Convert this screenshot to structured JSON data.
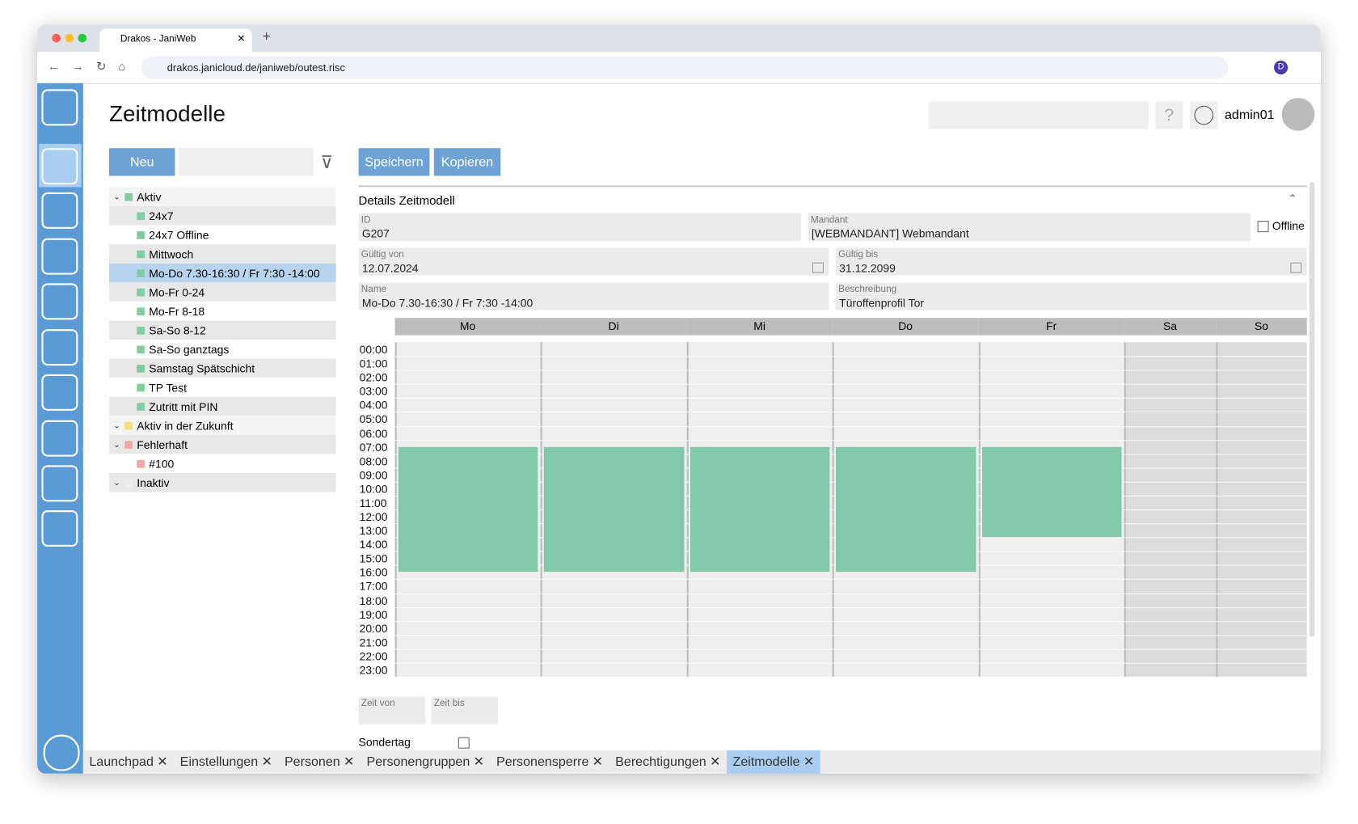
{
  "browser": {
    "tab_title": "Drakos - JaniWeb",
    "url": "drakos.janicloud.de/janiweb/outest.risc"
  },
  "header": {
    "title": "Zeitmodelle",
    "user": "admin01"
  },
  "toolbar": {
    "new": "Neu",
    "save": "Speichern",
    "copy": "Kopieren"
  },
  "tree": [
    {
      "label": "Aktiv",
      "status": "#7fcca5",
      "items": [
        "24x7",
        "24x7 Offline",
        "Mittwoch",
        "Mo-Do 7.30-16:30 / Fr 7:30 -14:00",
        "Mo-Fr 0-24",
        "Mo-Fr 8-18",
        "Sa-So 8-12",
        "Sa-So ganztags",
        "Samstag Spätschicht",
        "TP Test",
        "Zutritt mit PIN"
      ]
    },
    {
      "label": "Aktiv in der Zukunft",
      "status": "#f5df78",
      "items": []
    },
    {
      "label": "Fehlerhaft",
      "status": "#f2a7a7",
      "items": [
        "#100"
      ]
    },
    {
      "label": "Inaktiv",
      "status": "#eeeeee",
      "items": []
    }
  ],
  "selected": "Mo-Do 7.30-16:30 / Fr 7:30 -14:00",
  "details": {
    "title": "Details Zeitmodell",
    "offline": "Offline",
    "fields": [
      {
        "label": "ID",
        "value": "G207"
      },
      {
        "label": "Mandant",
        "value": "[WEBMANDANT] Webmandant"
      },
      {
        "label": "Gültig von",
        "value": "12.07.2024"
      },
      {
        "label": "Gültig bis",
        "value": "31.12.2099"
      },
      {
        "label": "Name",
        "value": "Mo-Do 7.30-16:30 / Fr 7:30 -14:00"
      },
      {
        "label": "Beschreibung",
        "value": "Türoffenprofil Tor"
      }
    ]
  },
  "week": {
    "days": [
      "Mo",
      "Di",
      "Mi",
      "Do",
      "Fr",
      "Sa",
      "So"
    ],
    "hours": [
      "00:00",
      "01:00",
      "02:00",
      "03:00",
      "04:00",
      "05:00",
      "06:00",
      "07:00",
      "08:00",
      "09:00",
      "10:00",
      "11:00",
      "12:00",
      "13:00",
      "14:00",
      "15:00",
      "16:00",
      "17:00",
      "18:00",
      "19:00",
      "20:00",
      "21:00",
      "22:00",
      "23:00"
    ],
    "color": "#82c9aa",
    "blocks": [
      {
        "day": 0,
        "start": 7.5,
        "end": 16.5
      },
      {
        "day": 1,
        "start": 7.5,
        "end": 16.5
      },
      {
        "day": 2,
        "start": 7.5,
        "end": 16.5
      },
      {
        "day": 3,
        "start": 7.5,
        "end": 16.5
      },
      {
        "day": 4,
        "start": 7.5,
        "end": 14
      }
    ]
  },
  "time": {
    "from": "Zeit von",
    "to": "Zeit bis",
    "special": "Sondertag"
  },
  "tabs": [
    "Launchpad",
    "Einstellungen",
    "Personen",
    "Personengruppen",
    "Personensperre",
    "Berechtigungen",
    "Zeitmodelle"
  ],
  "active_tab": "Zeitmodelle"
}
